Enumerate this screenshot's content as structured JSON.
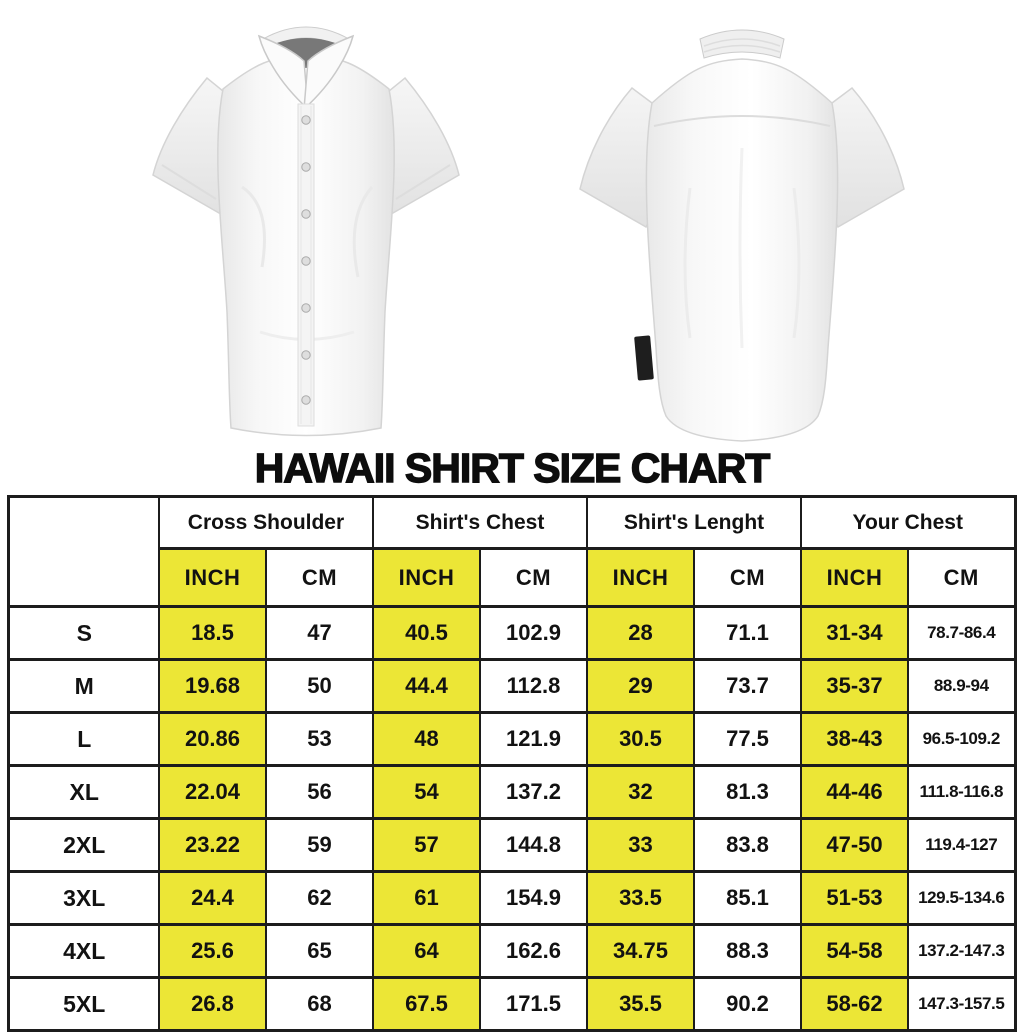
{
  "title": "HAWAII SHIRT SIZE CHART",
  "images": {
    "front_shirt_label": "white short-sleeve button-up shirt, front view",
    "back_shirt_label": "white short-sleeve button-up shirt, back view with black hem tag"
  },
  "colors": {
    "highlight_yellow": "#ece636",
    "table_border": "#1c1c1c",
    "text": "#121212",
    "background": "#ffffff"
  },
  "chart_data": {
    "type": "table",
    "title": "HAWAII SHIRT SIZE CHART",
    "corner_label": "",
    "column_groups": [
      "Cross Shoulder",
      "Shirt's Chest",
      "Shirt's Lenght",
      "Your Chest"
    ],
    "unit_headers": [
      "INCH",
      "CM"
    ],
    "highlighted_unit": "INCH",
    "size_labels": [
      "S",
      "M",
      "L",
      "XL",
      "2XL",
      "3XL",
      "4XL",
      "5XL"
    ],
    "rows": [
      [
        "S",
        "18.5",
        "47",
        "40.5",
        "102.9",
        "28",
        "71.1",
        "31-34",
        "78.7-86.4"
      ],
      [
        "M",
        "19.68",
        "50",
        "44.4",
        "112.8",
        "29",
        "73.7",
        "35-37",
        "88.9-94"
      ],
      [
        "L",
        "20.86",
        "53",
        "48",
        "121.9",
        "30.5",
        "77.5",
        "38-43",
        "96.5-109.2"
      ],
      [
        "XL",
        "22.04",
        "56",
        "54",
        "137.2",
        "32",
        "81.3",
        "44-46",
        "111.8-116.8"
      ],
      [
        "2XL",
        "23.22",
        "59",
        "57",
        "144.8",
        "33",
        "83.8",
        "47-50",
        "119.4-127"
      ],
      [
        "3XL",
        "24.4",
        "62",
        "61",
        "154.9",
        "33.5",
        "85.1",
        "51-53",
        "129.5-134.6"
      ],
      [
        "4XL",
        "25.6",
        "65",
        "64",
        "162.6",
        "34.75",
        "88.3",
        "54-58",
        "137.2-147.3"
      ],
      [
        "5XL",
        "26.8",
        "68",
        "67.5",
        "171.5",
        "35.5",
        "90.2",
        "58-62",
        "147.3-157.5"
      ]
    ]
  }
}
